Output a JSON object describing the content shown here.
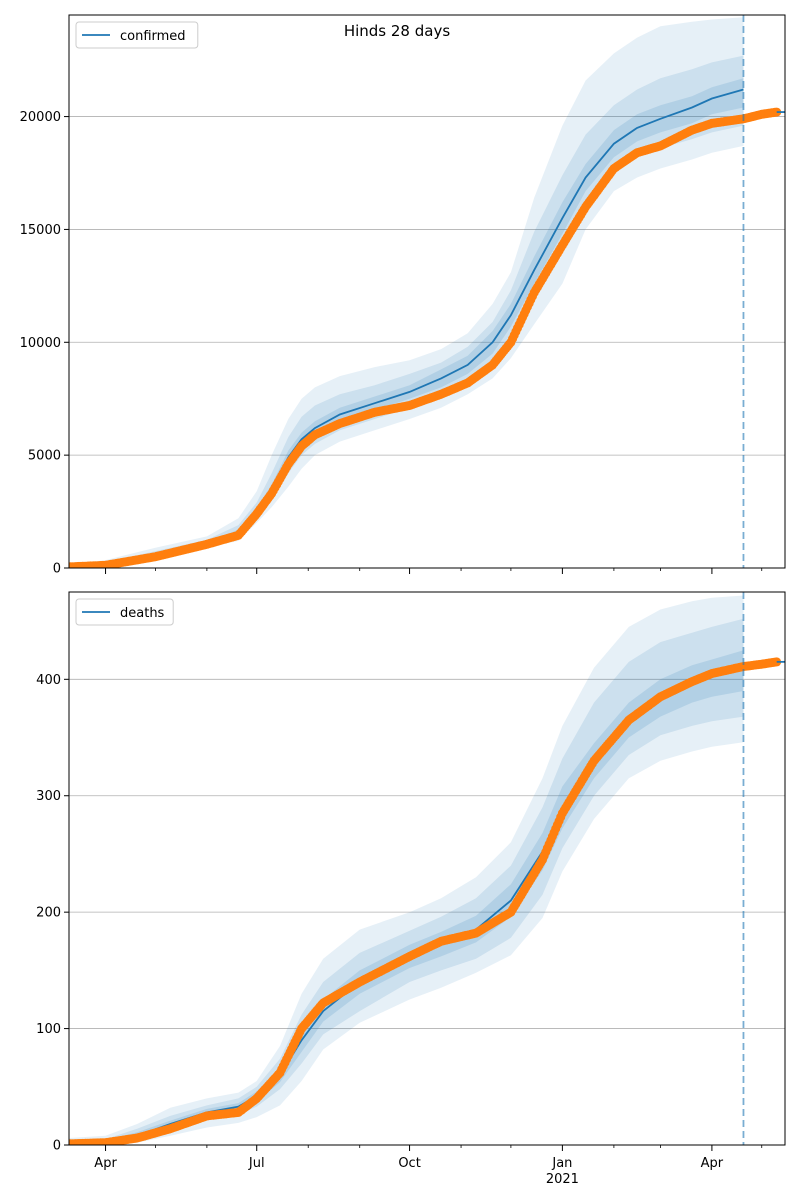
{
  "figure_title": "Hinds 28 days",
  "colors": {
    "model_line": "#1f77b4",
    "observed": "#ff7f0e",
    "band": "#1f77b4",
    "grid": "#b0b0b0",
    "axis": "#000000"
  },
  "chart_data": [
    {
      "type": "line",
      "panel": "top",
      "title": "Hinds 28 days",
      "legend": {
        "entries": [
          "confirmed"
        ],
        "position": "top-left"
      },
      "xlabel": "",
      "ylabel": "",
      "xlim": [
        "2020-03-10",
        "2021-05-15"
      ],
      "ylim": [
        0,
        24500
      ],
      "yticks": [
        0,
        5000,
        10000,
        15000,
        20000
      ],
      "ytick_labels": [
        "0",
        "5000",
        "10000",
        "15000",
        "20000"
      ],
      "grid": "horizontal",
      "forecast_marker_date": "2021-04-20",
      "series": [
        {
          "name": "confirmed",
          "role": "model",
          "x": [
            "2020-03-10",
            "2020-04-01",
            "2020-05-01",
            "2020-06-01",
            "2020-06-20",
            "2020-07-01",
            "2020-07-10",
            "2020-07-20",
            "2020-07-28",
            "2020-08-05",
            "2020-08-20",
            "2020-09-10",
            "2020-10-01",
            "2020-10-20",
            "2020-11-05",
            "2020-11-20",
            "2020-12-01",
            "2020-12-15",
            "2021-01-01",
            "2021-01-15",
            "2021-02-01",
            "2021-02-15",
            "2021-03-01",
            "2021-03-20",
            "2021-04-01",
            "2021-04-20"
          ],
          "y": [
            50,
            150,
            550,
            1100,
            1600,
            2500,
            3500,
            4900,
            5700,
            6200,
            6800,
            7300,
            7800,
            8400,
            9000,
            10000,
            11200,
            13200,
            15500,
            17300,
            18800,
            19500,
            19900,
            20400,
            20800,
            21200
          ]
        },
        {
          "name": "observed",
          "role": "observed",
          "x": [
            "2020-03-10",
            "2020-04-01",
            "2020-05-01",
            "2020-06-01",
            "2020-06-20",
            "2020-07-01",
            "2020-07-10",
            "2020-07-20",
            "2020-07-28",
            "2020-08-05",
            "2020-08-20",
            "2020-09-10",
            "2020-10-01",
            "2020-10-20",
            "2020-11-05",
            "2020-11-20",
            "2020-12-01",
            "2020-12-15",
            "2021-01-01",
            "2021-01-15",
            "2021-02-01",
            "2021-02-15",
            "2021-03-01",
            "2021-03-20",
            "2021-04-01",
            "2021-04-20",
            "2021-05-01",
            "2021-05-10"
          ],
          "y": [
            50,
            120,
            500,
            1050,
            1450,
            2400,
            3300,
            4600,
            5400,
            5900,
            6400,
            6900,
            7200,
            7700,
            8200,
            9000,
            10000,
            12200,
            14300,
            16000,
            17700,
            18400,
            18700,
            19400,
            19700,
            19900,
            20100,
            20200
          ]
        }
      ],
      "bands": [
        {
          "level": "outer",
          "lower": [
            0,
            40,
            300,
            900,
            1200,
            2000,
            2700,
            3600,
            4400,
            5000,
            5600,
            6100,
            6600,
            7100,
            7700,
            8400,
            9300,
            10800,
            12600,
            15000,
            16700,
            17300,
            17700,
            18100,
            18400,
            18700
          ],
          "upper": [
            150,
            350,
            900,
            1400,
            2200,
            3400,
            5000,
            6600,
            7500,
            8000,
            8500,
            8900,
            9200,
            9700,
            10400,
            11700,
            13100,
            16400,
            19600,
            21600,
            22800,
            23500,
            24000,
            24200,
            24300,
            24400
          ]
        },
        {
          "level": "middle",
          "lower": [
            0,
            80,
            400,
            1000,
            1400,
            2200,
            3100,
            4200,
            5000,
            5500,
            6100,
            6600,
            7100,
            7600,
            8200,
            9000,
            10100,
            11900,
            14000,
            16000,
            17500,
            18200,
            18600,
            19000,
            19300,
            19600
          ],
          "upper": [
            100,
            250,
            750,
            1250,
            1900,
            2900,
            4200,
            5800,
            6700,
            7200,
            7700,
            8100,
            8600,
            9100,
            9800,
            10900,
            12300,
            14900,
            17400,
            19200,
            20500,
            21200,
            21700,
            22100,
            22400,
            22700
          ]
        },
        {
          "level": "inner",
          "lower": [
            20,
            110,
            480,
            1060,
            1500,
            2350,
            3350,
            4600,
            5400,
            5900,
            6500,
            7000,
            7500,
            8000,
            8600,
            9500,
            10700,
            12600,
            14800,
            16700,
            18200,
            18900,
            19300,
            19700,
            20100,
            20400
          ],
          "upper": [
            80,
            190,
            620,
            1150,
            1700,
            2650,
            3700,
            5200,
            6000,
            6500,
            7100,
            7600,
            8100,
            8800,
            9400,
            10500,
            11700,
            13800,
            16200,
            17900,
            19400,
            20100,
            20500,
            20900,
            21300,
            21700
          ]
        }
      ]
    },
    {
      "type": "line",
      "panel": "bottom",
      "title": "",
      "legend": {
        "entries": [
          "deaths"
        ],
        "position": "top-left"
      },
      "xlabel": "",
      "ylabel": "",
      "xlim": [
        "2020-03-10",
        "2021-05-15"
      ],
      "ylim": [
        0,
        475
      ],
      "yticks": [
        0,
        100,
        200,
        300,
        400
      ],
      "ytick_labels": [
        "0",
        "100",
        "200",
        "300",
        "400"
      ],
      "xticks": [
        "2020-04-01",
        "2020-07-01",
        "2020-10-01",
        "2021-01-01",
        "2021-04-01"
      ],
      "xtick_labels": [
        "Apr",
        "Jul",
        "Oct",
        "Jan",
        "Apr"
      ],
      "xtick_sublabels": [
        "",
        "",
        "",
        "2021",
        ""
      ],
      "minor_xticks": [
        "2020-05-01",
        "2020-06-01",
        "2020-08-01",
        "2020-09-01",
        "2020-11-01",
        "2020-12-01",
        "2021-02-01",
        "2021-03-01",
        "2021-05-01"
      ],
      "grid": "horizontal",
      "forecast_marker_date": "2021-04-20",
      "series": [
        {
          "name": "deaths",
          "role": "model",
          "x": [
            "2020-03-10",
            "2020-04-01",
            "2020-04-20",
            "2020-05-10",
            "2020-06-01",
            "2020-06-20",
            "2020-07-01",
            "2020-07-15",
            "2020-07-28",
            "2020-08-10",
            "2020-09-01",
            "2020-10-01",
            "2020-10-20",
            "2020-11-10",
            "2020-12-01",
            "2020-12-20",
            "2021-01-01",
            "2021-01-20",
            "2021-02-10",
            "2021-03-01",
            "2021-03-20",
            "2021-04-01",
            "2021-04-20"
          ],
          "y": [
            1,
            2,
            8,
            18,
            28,
            33,
            42,
            60,
            90,
            115,
            140,
            162,
            172,
            185,
            210,
            252,
            290,
            330,
            365,
            385,
            398,
            402,
            410
          ]
        },
        {
          "name": "observed",
          "role": "observed",
          "x": [
            "2020-03-10",
            "2020-04-01",
            "2020-04-20",
            "2020-05-10",
            "2020-06-01",
            "2020-06-20",
            "2020-07-01",
            "2020-07-15",
            "2020-07-28",
            "2020-08-10",
            "2020-09-01",
            "2020-10-01",
            "2020-10-20",
            "2020-11-10",
            "2020-12-01",
            "2020-12-20",
            "2021-01-01",
            "2021-01-20",
            "2021-02-10",
            "2021-03-01",
            "2021-03-20",
            "2021-04-01",
            "2021-04-20",
            "2021-05-01",
            "2021-05-10"
          ],
          "y": [
            1,
            2,
            6,
            14,
            25,
            28,
            40,
            62,
            100,
            122,
            140,
            162,
            175,
            182,
            200,
            245,
            285,
            330,
            365,
            385,
            398,
            405,
            411,
            413,
            415
          ]
        }
      ],
      "bands": [
        {
          "level": "outer",
          "lower": [
            0,
            0,
            2,
            8,
            15,
            19,
            24,
            34,
            55,
            82,
            105,
            125,
            135,
            148,
            163,
            195,
            235,
            280,
            315,
            330,
            338,
            342,
            346
          ],
          "upper": [
            6,
            8,
            18,
            32,
            40,
            45,
            55,
            85,
            130,
            160,
            185,
            200,
            212,
            230,
            260,
            315,
            360,
            410,
            445,
            460,
            467,
            470,
            472
          ]
        },
        {
          "level": "middle",
          "lower": [
            0,
            1,
            4,
            12,
            22,
            26,
            33,
            48,
            70,
            95,
            115,
            140,
            150,
            160,
            178,
            215,
            255,
            300,
            335,
            352,
            360,
            364,
            368
          ],
          "upper": [
            4,
            5,
            14,
            25,
            34,
            40,
            50,
            74,
            112,
            140,
            165,
            184,
            196,
            212,
            240,
            290,
            332,
            380,
            415,
            432,
            440,
            445,
            452
          ]
        },
        {
          "level": "inner",
          "lower": [
            0,
            1,
            6,
            15,
            25,
            30,
            37,
            54,
            80,
            106,
            130,
            152,
            162,
            174,
            196,
            236,
            272,
            315,
            350,
            368,
            380,
            385,
            390
          ],
          "upper": [
            3,
            4,
            11,
            21,
            31,
            36,
            46,
            66,
            100,
            125,
            150,
            172,
            183,
            197,
            224,
            268,
            308,
            345,
            380,
            400,
            412,
            417,
            425
          ]
        }
      ]
    }
  ]
}
